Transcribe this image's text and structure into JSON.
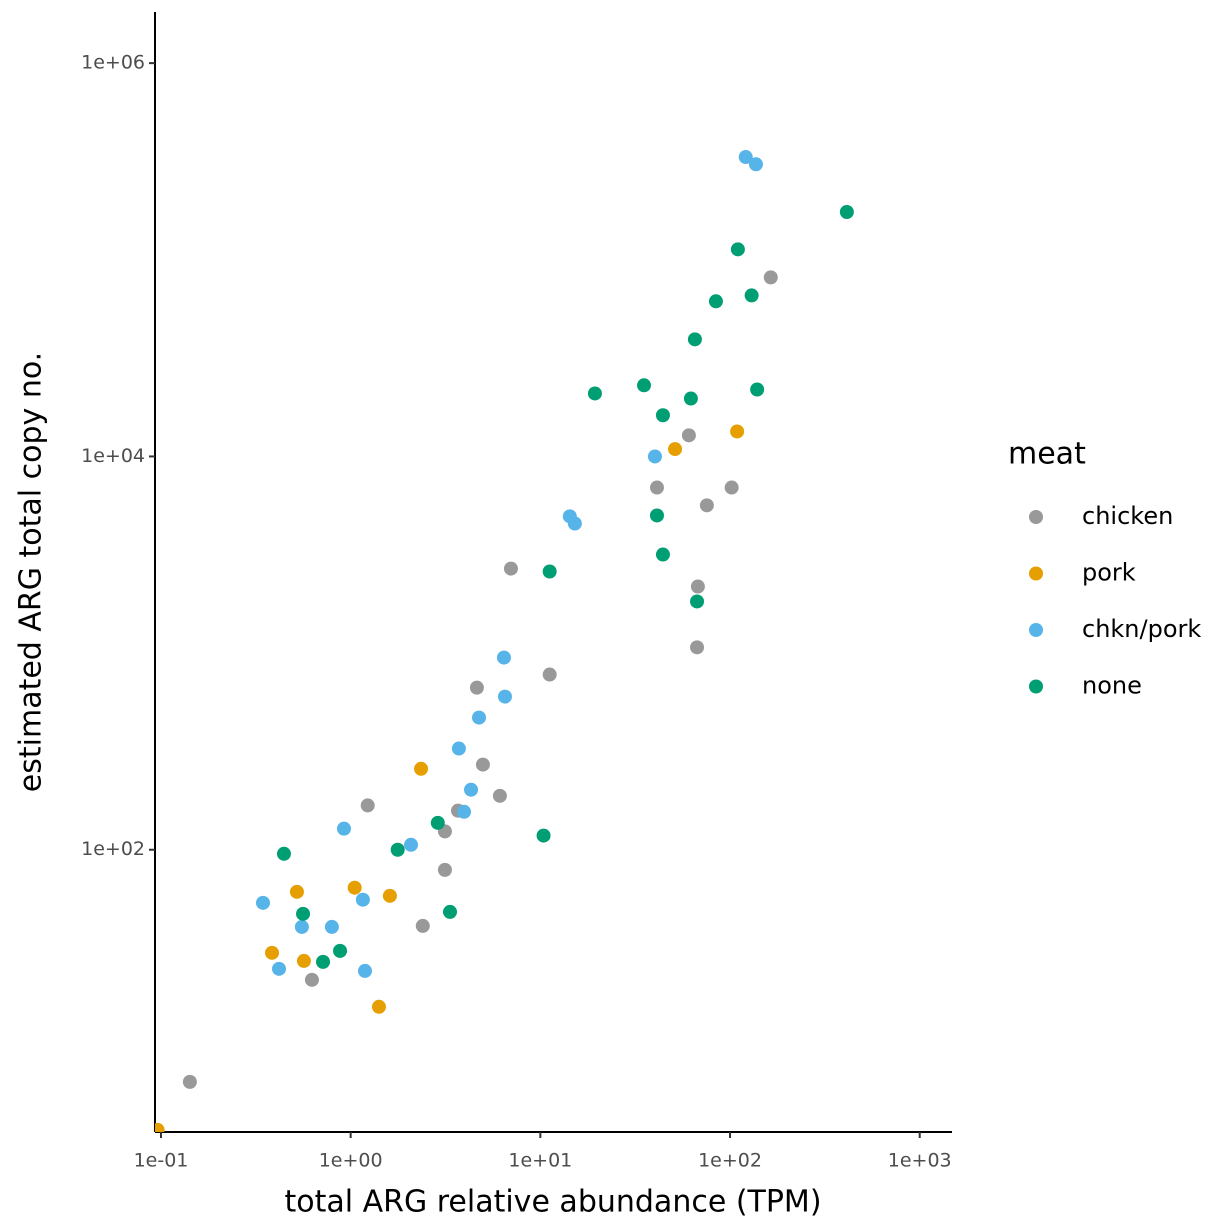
{
  "chart_data": {
    "type": "scatter",
    "x_label": "total ARG relative abundance (TPM)",
    "y_label": "estimated ARG total copy no.",
    "xscale": "log",
    "yscale": "log",
    "xlim": [
      0.093,
      1480
    ],
    "ylim": [
      3.67,
      1820000
    ],
    "xticks": [
      {
        "value": 0.1,
        "label": "1e-01"
      },
      {
        "value": 1,
        "label": "1e+00"
      },
      {
        "value": 10,
        "label": "1e+01"
      },
      {
        "value": 100,
        "label": "1e+02"
      },
      {
        "value": 1000,
        "label": "1e+03"
      }
    ],
    "yticks": [
      {
        "value": 100,
        "label": "1e+02"
      },
      {
        "value": 10000,
        "label": "1e+04"
      },
      {
        "value": 1000000,
        "label": "1e+06"
      }
    ],
    "grid": false,
    "legend_title": "meat",
    "legend_position": "right",
    "series": [
      {
        "name": "chicken",
        "color": "#999999",
        "x": [
          0.142,
          0.625,
          1.23,
          2.4,
          3.14,
          3.14,
          3.68,
          4.98,
          4.63,
          6.12,
          7.0,
          11.2,
          41.2,
          60.7,
          67.7,
          67,
          75.5,
          102,
          164
        ],
        "values": [
          6.6,
          21.8,
          168,
          41,
          79,
          124,
          158,
          271,
          667,
          188,
          2690,
          778,
          6950,
          12800,
          2180,
          1070,
          5640,
          6950,
          81400
        ]
      },
      {
        "name": "pork",
        "color": "#E69F00",
        "x": [
          0.096,
          0.385,
          0.521,
          0.567,
          1.05,
          1.41,
          1.61,
          2.35,
          51.3,
          109
        ],
        "values": [
          3.76,
          29.9,
          61.1,
          27.2,
          64.1,
          15.9,
          58.3,
          258,
          10900,
          13400
        ]
      },
      {
        "name": "chkn/pork",
        "color": "#56B4E9",
        "x": [
          0.345,
          0.419,
          0.553,
          0.796,
          0.922,
          1.16,
          1.19,
          2.08,
          3.72,
          3.96,
          4.31,
          4.75,
          6.43,
          6.51,
          14.3,
          15.2,
          40.2,
          121,
          137
        ],
        "values": [
          53.7,
          24.8,
          40.5,
          40.5,
          128,
          55.7,
          24.2,
          106,
          327,
          156,
          202,
          470,
          949,
          601,
          4960,
          4560,
          10000,
          333000,
          306000
        ]
      },
      {
        "name": "none",
        "color": "#009E73",
        "x": [
          0.445,
          0.561,
          0.715,
          0.879,
          1.77,
          2.88,
          3.34,
          10.4,
          11.2,
          19.4,
          35.2,
          41.2,
          44.3,
          44.3,
          62.2,
          65.3,
          67,
          84.3,
          110,
          130,
          139,
          413
        ],
        "values": [
          95.4,
          47.2,
          26.9,
          30.6,
          100,
          137,
          48.3,
          118,
          2600,
          20900,
          23000,
          5010,
          16200,
          3170,
          19700,
          39400,
          1830,
          61500,
          113000,
          65900,
          21900,
          175000
        ]
      }
    ]
  }
}
